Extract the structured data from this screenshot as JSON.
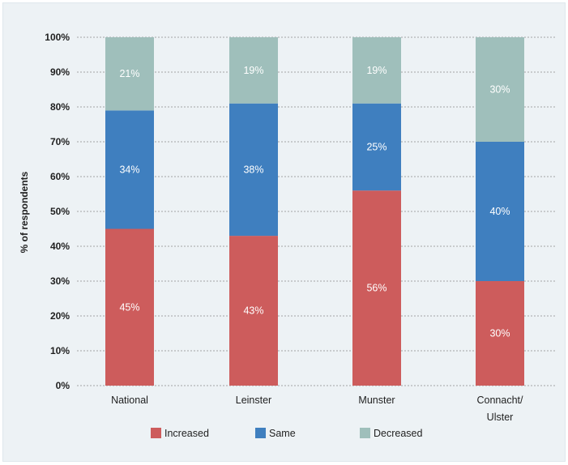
{
  "chart_data": {
    "type": "bar",
    "stacked": true,
    "title": "",
    "xlabel": "",
    "ylabel": "% of respondents",
    "ylim": [
      0,
      100
    ],
    "yticks": [
      "0%",
      "10%",
      "20%",
      "30%",
      "40%",
      "50%",
      "60%",
      "70%",
      "80%",
      "90%",
      "100%"
    ],
    "grid": true,
    "legend_position": "bottom",
    "categories": [
      [
        "National"
      ],
      [
        "Leinster"
      ],
      [
        "Munster"
      ],
      [
        "Connacht/",
        "Ulster"
      ]
    ],
    "series": [
      {
        "name": "Increased",
        "color": "#cd5c5c",
        "values": [
          45,
          43,
          56,
          30
        ],
        "labels": [
          "45%",
          "43%",
          "56%",
          "30%"
        ]
      },
      {
        "name": "Same",
        "color": "#3f7fbf",
        "values": [
          34,
          38,
          25,
          40
        ],
        "labels": [
          "34%",
          "38%",
          "25%",
          "40%"
        ]
      },
      {
        "name": "Decreased",
        "color": "#9fbfbb",
        "values": [
          21,
          19,
          19,
          30
        ],
        "labels": [
          "21%",
          "19%",
          "19%",
          "30%"
        ]
      }
    ]
  }
}
